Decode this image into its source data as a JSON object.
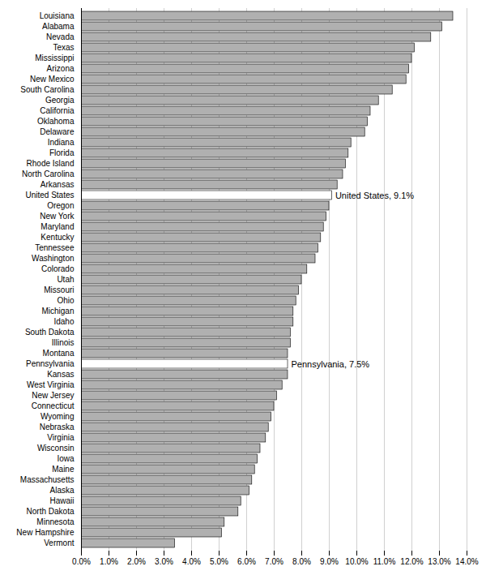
{
  "chart_data": {
    "type": "bar",
    "orientation": "horizontal",
    "categories": [
      "Louisiana",
      "Alabama",
      "Nevada",
      "Texas",
      "Mississippi",
      "Arizona",
      "New Mexico",
      "South Carolina",
      "Georgia",
      "California",
      "Oklahoma",
      "Delaware",
      "Indiana",
      "Florida",
      "Rhode Island",
      "North Carolina",
      "Arkansas",
      "United States",
      "Oregon",
      "New York",
      "Maryland",
      "Kentucky",
      "Tennessee",
      "Washington",
      "Colorado",
      "Utah",
      "Missouri",
      "Ohio",
      "Michigan",
      "Idaho",
      "South Dakota",
      "Illinois",
      "Montana",
      "Pennsylvania",
      "Kansas",
      "West Virginia",
      "New Jersey",
      "Connecticut",
      "Wyoming",
      "Nebraska",
      "Virginia",
      "Wisconsin",
      "Iowa",
      "Maine",
      "Massachusetts",
      "Alaska",
      "Hawaii",
      "North Dakota",
      "Minnesota",
      "New Hampshire",
      "Vermont"
    ],
    "values": [
      13.5,
      13.1,
      12.7,
      12.1,
      12.0,
      11.9,
      11.8,
      11.3,
      10.8,
      10.5,
      10.4,
      10.3,
      9.8,
      9.7,
      9.6,
      9.5,
      9.3,
      9.1,
      9.0,
      8.9,
      8.8,
      8.7,
      8.6,
      8.5,
      8.2,
      8.0,
      7.9,
      7.8,
      7.7,
      7.7,
      7.6,
      7.6,
      7.5,
      7.5,
      7.5,
      7.3,
      7.1,
      7.0,
      6.9,
      6.8,
      6.7,
      6.5,
      6.4,
      6.3,
      6.2,
      6.1,
      5.8,
      5.7,
      5.2,
      5.1,
      3.4
    ],
    "colors": [
      "#b0b0b0",
      "#b0b0b0",
      "#b0b0b0",
      "#b0b0b0",
      "#b0b0b0",
      "#b0b0b0",
      "#b0b0b0",
      "#b0b0b0",
      "#b0b0b0",
      "#b0b0b0",
      "#b0b0b0",
      "#b0b0b0",
      "#b0b0b0",
      "#b0b0b0",
      "#b0b0b0",
      "#b0b0b0",
      "#b0b0b0",
      "#ffffff",
      "#b0b0b0",
      "#b0b0b0",
      "#b0b0b0",
      "#b0b0b0",
      "#b0b0b0",
      "#b0b0b0",
      "#b0b0b0",
      "#b0b0b0",
      "#b0b0b0",
      "#b0b0b0",
      "#b0b0b0",
      "#b0b0b0",
      "#b0b0b0",
      "#b0b0b0",
      "#b0b0b0",
      "#ffffff",
      "#b0b0b0",
      "#b0b0b0",
      "#b0b0b0",
      "#b0b0b0",
      "#b0b0b0",
      "#b0b0b0",
      "#b0b0b0",
      "#b0b0b0",
      "#b0b0b0",
      "#b0b0b0",
      "#b0b0b0",
      "#b0b0b0",
      "#b0b0b0",
      "#b0b0b0",
      "#b0b0b0",
      "#b0b0b0",
      "#b0b0b0"
    ],
    "xlim": [
      0,
      14.0
    ],
    "xticks": [
      {
        "value": 0,
        "label": "0.0%"
      },
      {
        "value": 1,
        "label": "1.0%"
      },
      {
        "value": 2,
        "label": "2.0%"
      },
      {
        "value": 3,
        "label": "3.0%"
      },
      {
        "value": 4,
        "label": "4.0%"
      },
      {
        "value": 5,
        "label": "5.0%"
      },
      {
        "value": 6,
        "label": "6.0%"
      },
      {
        "value": 7,
        "label": "7.0%"
      },
      {
        "value": 8,
        "label": "8.0%"
      },
      {
        "value": 9,
        "label": "9.0%"
      },
      {
        "value": 10,
        "label": "10.0%"
      },
      {
        "value": 11,
        "label": "11.0%"
      },
      {
        "value": 12,
        "label": "12.0%"
      },
      {
        "value": 13,
        "label": "13.0%"
      },
      {
        "value": 14,
        "label": "14.0%"
      }
    ],
    "grid": true,
    "annotations": [
      {
        "text": "United States, 9.1%",
        "category": "United States"
      },
      {
        "text": "Pennsylvania, 7.5%",
        "category": "Pennsylvania"
      }
    ]
  }
}
